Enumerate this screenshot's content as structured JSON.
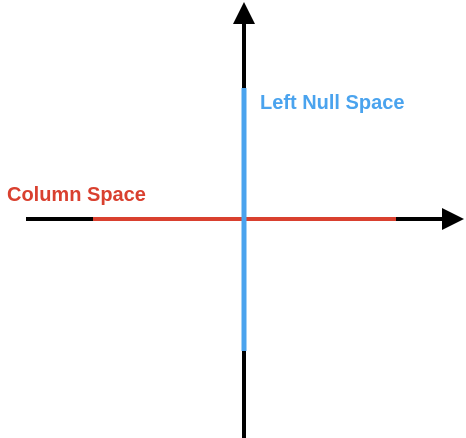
{
  "labels": {
    "left_null_space": "Left Null Space",
    "column_space": "Column Space"
  },
  "colors": {
    "axis": "#000000",
    "column_space": "#d9402f",
    "left_null_space": "#4aa3ee"
  }
}
